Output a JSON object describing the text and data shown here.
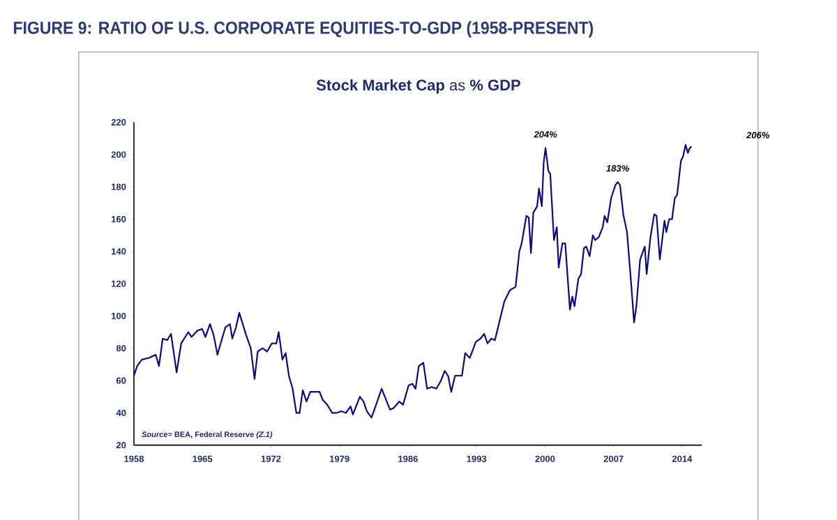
{
  "chart_data": {
    "type": "line",
    "title": "FIGURE 9: RATIO OF U.S. CORPORATE EQUITIES-TO-GDP (1958-PRESENT)",
    "subtitle": "**Stock Market Cap** as **% GDP**",
    "x": [
      1958.0,
      1958.33,
      1958.81,
      1959.52,
      1960.23,
      1960.56,
      1960.94,
      1961.41,
      1961.79,
      1962.36,
      1962.83,
      1963.55,
      1963.88,
      1964.49,
      1964.97,
      1965.3,
      1965.77,
      1966.15,
      1966.53,
      1966.86,
      1967.34,
      1967.81,
      1968.05,
      1968.43,
      1968.76,
      1969.47,
      1969.94,
      1970.32,
      1970.65,
      1971.13,
      1971.6,
      1972.08,
      1972.55,
      1972.79,
      1973.17,
      1973.5,
      1973.83,
      1974.21,
      1974.59,
      1974.92,
      1975.25,
      1975.63,
      1976.01,
      1976.58,
      1976.96,
      1977.29,
      1977.76,
      1978.24,
      1978.71,
      1979.18,
      1979.66,
      1980.13,
      1980.37,
      1981.08,
      1981.46,
      1981.79,
      1982.27,
      1982.74,
      1983.31,
      1984.16,
      1984.54,
      1985.11,
      1985.49,
      1986.06,
      1986.44,
      1986.77,
      1987.1,
      1987.57,
      1987.95,
      1988.43,
      1988.9,
      1989.37,
      1989.75,
      1990.09,
      1990.42,
      1990.8,
      1991.51,
      1991.84,
      1992.31,
      1992.93,
      1993.4,
      1993.78,
      1994.12,
      1994.5,
      1994.88,
      1995.36,
      1995.84,
      1996.41,
      1996.99,
      1997.37,
      1997.61,
      1998.09,
      1998.33,
      1998.56,
      1998.8,
      1999.19,
      1999.38,
      1999.67,
      1999.86,
      2000.05,
      2000.33,
      2000.53,
      2000.91,
      2001.2,
      2001.39,
      2001.77,
      2002.06,
      2002.54,
      2002.78,
      2003.01,
      2003.4,
      2003.68,
      2003.97,
      2004.21,
      2004.55,
      2004.88,
      2005.12,
      2005.5,
      2005.89,
      2006.08,
      2006.36,
      2006.75,
      2007.18,
      2007.42,
      2007.66,
      2007.99,
      2008.37,
      2008.76,
      2009.09,
      2009.33,
      2009.71,
      2010.19,
      2010.38,
      2010.77,
      2011.15,
      2011.39,
      2011.72,
      2012.2,
      2012.39,
      2012.68,
      2012.97,
      2013.25,
      2013.49,
      2013.88,
      2014.11,
      2014.35,
      2014.59,
      2014.78,
      2014.97
    ],
    "values": [
      63,
      69,
      73,
      74,
      76,
      69,
      86,
      85,
      89,
      65,
      83,
      90,
      87,
      91,
      92,
      87,
      95,
      88,
      76,
      83,
      93,
      95,
      86,
      93,
      102,
      88,
      80,
      61,
      78,
      80,
      78,
      83,
      83,
      90,
      73,
      77,
      63,
      55,
      40,
      40,
      54,
      47,
      53,
      53,
      53,
      48,
      45,
      40,
      40,
      41,
      40,
      44,
      39,
      50,
      47,
      41,
      37,
      45,
      55,
      42,
      43,
      47,
      45,
      57,
      58,
      55,
      69,
      71,
      55,
      56,
      55,
      60,
      66,
      63,
      53,
      63,
      63,
      77,
      74,
      84,
      86,
      89,
      83,
      86,
      85,
      97,
      109,
      116,
      118,
      140,
      145,
      162,
      161,
      139,
      164,
      168,
      179,
      168,
      195,
      204,
      190,
      188,
      147,
      155,
      130,
      145,
      145,
      104,
      112,
      106,
      123,
      126,
      142,
      143,
      137,
      150,
      147,
      149,
      155,
      162,
      158,
      173,
      181,
      183,
      181,
      163,
      152,
      123,
      96,
      106,
      135,
      143,
      126,
      149,
      163,
      162,
      135,
      159,
      152,
      160,
      160,
      173,
      175,
      196,
      199,
      206,
      201,
      204,
      205
    ],
    "color": "#0a0a78",
    "xlim": [
      1958,
      2016
    ],
    "ylim": [
      20,
      220
    ],
    "xticks": [
      1958,
      1965,
      1972,
      1979,
      1986,
      1993,
      2000,
      2007,
      2014
    ],
    "yticks": [
      20,
      40,
      60,
      80,
      100,
      120,
      140,
      160,
      180,
      200,
      220
    ],
    "annotations": [
      {
        "text": "204%",
        "x": 2000.05,
        "y": 204
      },
      {
        "text": "183%",
        "x": 2007.42,
        "y": 183
      },
      "206%",
      "*Source=* BEA, Federal Reserve *(Z.1)*"
    ]
  }
}
